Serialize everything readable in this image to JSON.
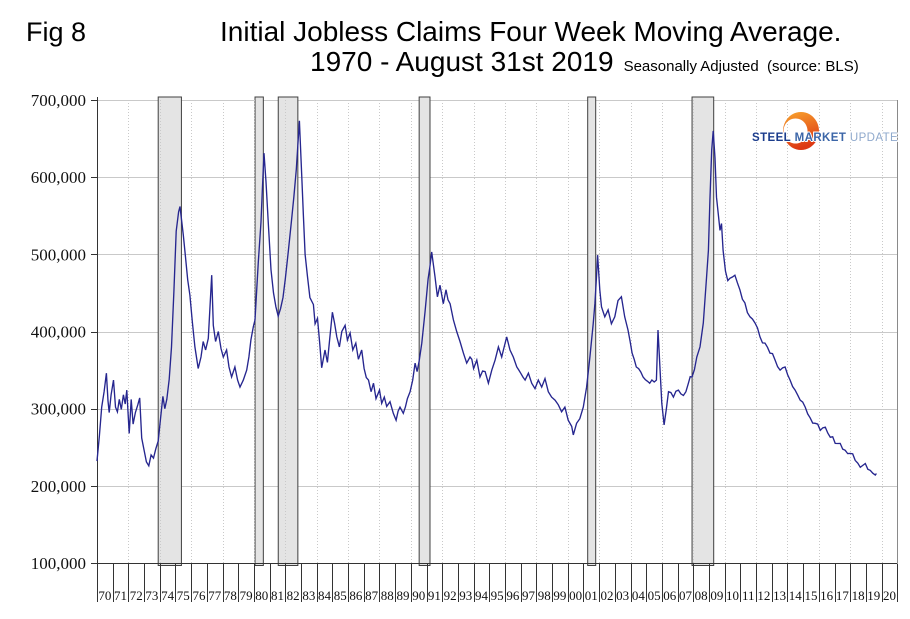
{
  "fig_label": "Fig 8",
  "title": {
    "line1": "Initial Jobless Claims Four Week Moving Average.",
    "line2": "1970 - August 31st 2019",
    "subtitle": "Seasonally Adjusted  (source: BLS)"
  },
  "logo": {
    "steel": "STEEL",
    "market": "MARKET",
    "update": "UPDATE",
    "colors": {
      "steel": "#1b3c8c",
      "market": "#3c66a8",
      "update": "#8fa9cc",
      "crescent_top": "#f9a52e",
      "crescent_bottom": "#dd3814"
    }
  },
  "chart_data": {
    "type": "line",
    "title": "Initial Jobless Claims Four Week Moving Average. 1970 - August 31st 2019",
    "subtitle": "Seasonally Adjusted (source: BLS)",
    "units": "claims (values stored in thousands)",
    "x_axis": {
      "min": 1970,
      "max": 2021,
      "label_years_start": 1970,
      "tick_labels": [
        "70",
        "71",
        "72",
        "73",
        "74",
        "75",
        "76",
        "77",
        "78",
        "79",
        "80",
        "81",
        "82",
        "83",
        "84",
        "85",
        "86",
        "87",
        "88",
        "89",
        "90",
        "91",
        "92",
        "93",
        "94",
        "95",
        "96",
        "97",
        "98",
        "99",
        "00",
        "01",
        "02",
        "03",
        "04",
        "05",
        "06",
        "07",
        "08",
        "09",
        "10",
        "11",
        "12",
        "13",
        "14",
        "15",
        "16",
        "17",
        "18",
        "19",
        "20"
      ]
    },
    "y_axis": {
      "min": 100000,
      "max": 700000,
      "step": 100000,
      "tick_labels": [
        "100,000",
        "200,000",
        "300,000",
        "400,000",
        "500,000",
        "600,000",
        "700,000"
      ]
    },
    "grid": {
      "horizontal": "solid",
      "vertical": "dotted every 2 years",
      "v_years_start": 1972,
      "v_years_end": 2020
    },
    "recession_bands": [
      {
        "start": 1973.9,
        "end": 1975.38
      },
      {
        "start": 1980.07,
        "end": 1980.6
      },
      {
        "start": 1981.55,
        "end": 1982.8
      },
      {
        "start": 1990.53,
        "end": 1991.22
      },
      {
        "start": 2001.27,
        "end": 2001.78
      },
      {
        "start": 2007.92,
        "end": 2009.3
      }
    ],
    "band_style": {
      "fill": "#e4e4e4",
      "border": "#3f3f3f"
    },
    "series": [
      {
        "name": "Initial jobless claims, four-week moving average (seasonally adjusted)",
        "color": "#26268f",
        "points": [
          [
            1970.0,
            232
          ],
          [
            1970.15,
            265
          ],
          [
            1970.3,
            302
          ],
          [
            1970.45,
            322
          ],
          [
            1970.6,
            346
          ],
          [
            1970.7,
            310
          ],
          [
            1970.78,
            295
          ],
          [
            1970.9,
            318
          ],
          [
            1971.05,
            337
          ],
          [
            1971.18,
            302
          ],
          [
            1971.3,
            296
          ],
          [
            1971.42,
            312
          ],
          [
            1971.55,
            299
          ],
          [
            1971.68,
            318
          ],
          [
            1971.8,
            306
          ],
          [
            1971.9,
            324
          ],
          [
            1972.05,
            268
          ],
          [
            1972.18,
            312
          ],
          [
            1972.3,
            280
          ],
          [
            1972.45,
            295
          ],
          [
            1972.6,
            305
          ],
          [
            1972.72,
            314
          ],
          [
            1972.85,
            262
          ],
          [
            1973.0,
            246
          ],
          [
            1973.15,
            231
          ],
          [
            1973.3,
            226
          ],
          [
            1973.45,
            240
          ],
          [
            1973.6,
            236
          ],
          [
            1973.75,
            248
          ],
          [
            1973.9,
            258
          ],
          [
            1974.05,
            288
          ],
          [
            1974.2,
            316
          ],
          [
            1974.32,
            300
          ],
          [
            1974.45,
            312
          ],
          [
            1974.6,
            338
          ],
          [
            1974.75,
            380
          ],
          [
            1974.9,
            452
          ],
          [
            1975.05,
            530
          ],
          [
            1975.2,
            555
          ],
          [
            1975.29,
            562
          ],
          [
            1975.5,
            525
          ],
          [
            1975.61,
            503
          ],
          [
            1975.78,
            467
          ],
          [
            1975.92,
            447
          ],
          [
            1976.07,
            413
          ],
          [
            1976.24,
            380
          ],
          [
            1976.45,
            352
          ],
          [
            1976.63,
            367
          ],
          [
            1976.77,
            387
          ],
          [
            1976.92,
            376
          ],
          [
            1977.09,
            391
          ],
          [
            1977.31,
            473
          ],
          [
            1977.41,
            408
          ],
          [
            1977.56,
            387
          ],
          [
            1977.73,
            400
          ],
          [
            1977.9,
            378
          ],
          [
            1978.05,
            367
          ],
          [
            1978.26,
            376
          ],
          [
            1978.41,
            354
          ],
          [
            1978.58,
            341
          ],
          [
            1978.79,
            354
          ],
          [
            1978.96,
            337
          ],
          [
            1979.11,
            328
          ],
          [
            1979.32,
            337
          ],
          [
            1979.54,
            350
          ],
          [
            1979.68,
            367
          ],
          [
            1979.81,
            389
          ],
          [
            1979.96,
            406
          ],
          [
            1980.07,
            415
          ],
          [
            1980.28,
            490
          ],
          [
            1980.45,
            542
          ],
          [
            1980.54,
            585
          ],
          [
            1980.64,
            631
          ],
          [
            1980.77,
            594
          ],
          [
            1980.92,
            538
          ],
          [
            1981.09,
            480
          ],
          [
            1981.25,
            450
          ],
          [
            1981.4,
            432
          ],
          [
            1981.55,
            420
          ],
          [
            1981.7,
            430
          ],
          [
            1981.85,
            444
          ],
          [
            1982.0,
            468
          ],
          [
            1982.2,
            505
          ],
          [
            1982.4,
            545
          ],
          [
            1982.55,
            575
          ],
          [
            1982.7,
            610
          ],
          [
            1982.9,
            673
          ],
          [
            1983.05,
            600
          ],
          [
            1983.15,
            550
          ],
          [
            1983.26,
            500
          ],
          [
            1983.57,
            444
          ],
          [
            1983.79,
            435
          ],
          [
            1983.9,
            410
          ],
          [
            1984.05,
            417
          ],
          [
            1984.32,
            353
          ],
          [
            1984.53,
            376
          ],
          [
            1984.68,
            360
          ],
          [
            1985.0,
            425
          ],
          [
            1985.28,
            393
          ],
          [
            1985.45,
            380
          ],
          [
            1985.6,
            400
          ],
          [
            1985.81,
            408
          ],
          [
            1985.96,
            389
          ],
          [
            1986.13,
            398
          ],
          [
            1986.3,
            376
          ],
          [
            1986.49,
            385
          ],
          [
            1986.66,
            364
          ],
          [
            1986.87,
            376
          ],
          [
            1987.02,
            352
          ],
          [
            1987.3,
            337
          ],
          [
            1987.47,
            322
          ],
          [
            1987.62,
            333
          ],
          [
            1987.78,
            313
          ],
          [
            1988.0,
            324
          ],
          [
            1988.14,
            307
          ],
          [
            1988.31,
            315
          ],
          [
            1988.46,
            303
          ],
          [
            1988.67,
            309
          ],
          [
            1988.88,
            294
          ],
          [
            1989.06,
            285
          ],
          [
            1989.31,
            302
          ],
          [
            1989.52,
            294
          ],
          [
            1989.78,
            313
          ],
          [
            1989.95,
            322
          ],
          [
            1990.12,
            337
          ],
          [
            1990.27,
            359
          ],
          [
            1990.4,
            348
          ],
          [
            1990.53,
            362
          ],
          [
            1990.7,
            385
          ],
          [
            1990.9,
            425
          ],
          [
            1991.1,
            468
          ],
          [
            1991.33,
            503
          ],
          [
            1991.54,
            471
          ],
          [
            1991.69,
            445
          ],
          [
            1991.86,
            460
          ],
          [
            1992.07,
            436
          ],
          [
            1992.24,
            454
          ],
          [
            1992.5,
            436
          ],
          [
            1992.71,
            415
          ],
          [
            1992.92,
            400
          ],
          [
            1993.13,
            387
          ],
          [
            1993.35,
            372
          ],
          [
            1993.56,
            359
          ],
          [
            1993.77,
            367
          ],
          [
            1994.0,
            352
          ],
          [
            1994.2,
            363
          ],
          [
            1994.41,
            341
          ],
          [
            1994.73,
            348
          ],
          [
            1994.94,
            333
          ],
          [
            1995.16,
            350
          ],
          [
            1995.37,
            363
          ],
          [
            1995.58,
            380
          ],
          [
            1995.79,
            367
          ],
          [
            1995.9,
            376
          ],
          [
            1996.11,
            393
          ],
          [
            1996.32,
            376
          ],
          [
            1996.53,
            367
          ],
          [
            1996.75,
            354
          ],
          [
            1997.0,
            346
          ],
          [
            1997.28,
            337
          ],
          [
            1997.49,
            346
          ],
          [
            1997.7,
            333
          ],
          [
            1997.91,
            326
          ],
          [
            1998.12,
            337
          ],
          [
            1998.34,
            328
          ],
          [
            1998.55,
            339
          ],
          [
            1998.76,
            322
          ],
          [
            1998.97,
            315
          ],
          [
            1999.19,
            311
          ],
          [
            1999.4,
            305
          ],
          [
            1999.61,
            296
          ],
          [
            1999.82,
            302
          ],
          [
            2000.03,
            285
          ],
          [
            2000.25,
            277
          ],
          [
            2000.35,
            266
          ],
          [
            2000.56,
            281
          ],
          [
            2000.77,
            287
          ],
          [
            2000.99,
            302
          ],
          [
            2001.2,
            328
          ],
          [
            2001.41,
            367
          ],
          [
            2001.62,
            410
          ],
          [
            2001.73,
            436
          ],
          [
            2001.83,
            471
          ],
          [
            2001.9,
            499
          ],
          [
            2002.04,
            454
          ],
          [
            2002.15,
            432
          ],
          [
            2002.36,
            419
          ],
          [
            2002.57,
            428
          ],
          [
            2002.78,
            410
          ],
          [
            2003.0,
            419
          ],
          [
            2003.2,
            440
          ],
          [
            2003.42,
            445
          ],
          [
            2003.63,
            419
          ],
          [
            2003.84,
            402
          ],
          [
            2004.1,
            372
          ],
          [
            2004.37,
            354
          ],
          [
            2004.8,
            341
          ],
          [
            2005.22,
            333
          ],
          [
            2005.65,
            337
          ],
          [
            2005.75,
            402
          ],
          [
            2005.99,
            307
          ],
          [
            2006.14,
            279
          ],
          [
            2006.42,
            322
          ],
          [
            2006.73,
            315
          ],
          [
            2007.05,
            324
          ],
          [
            2007.37,
            317
          ],
          [
            2007.69,
            333
          ],
          [
            2007.92,
            341
          ],
          [
            2008.22,
            367
          ],
          [
            2008.43,
            380
          ],
          [
            2008.64,
            411
          ],
          [
            2008.85,
            471
          ],
          [
            2008.96,
            505
          ],
          [
            2009.06,
            570
          ],
          [
            2009.17,
            635
          ],
          [
            2009.27,
            660
          ],
          [
            2009.38,
            625
          ],
          [
            2009.48,
            574
          ],
          [
            2009.7,
            531
          ],
          [
            2009.8,
            540
          ],
          [
            2009.9,
            505
          ],
          [
            2010.05,
            478
          ],
          [
            2010.2,
            466
          ],
          [
            2010.33,
            469
          ],
          [
            2010.65,
            473
          ],
          [
            2010.97,
            454
          ],
          [
            2011.29,
            437
          ],
          [
            2011.61,
            419
          ],
          [
            2011.93,
            411
          ],
          [
            2012.25,
            393
          ],
          [
            2012.57,
            385
          ],
          [
            2012.89,
            372
          ],
          [
            2013.21,
            363
          ],
          [
            2013.53,
            350
          ],
          [
            2013.85,
            354
          ],
          [
            2014.17,
            337
          ],
          [
            2014.49,
            324
          ],
          [
            2014.81,
            311
          ],
          [
            2015.13,
            302
          ],
          [
            2015.45,
            288
          ],
          [
            2015.77,
            281
          ],
          [
            2016.09,
            272
          ],
          [
            2016.41,
            276
          ],
          [
            2016.73,
            263
          ],
          [
            2017.04,
            255
          ],
          [
            2017.36,
            255
          ],
          [
            2017.68,
            246
          ],
          [
            2018.0,
            242
          ],
          [
            2018.32,
            233
          ],
          [
            2018.64,
            224
          ],
          [
            2018.96,
            229
          ],
          [
            2019.28,
            220
          ],
          [
            2019.6,
            214
          ],
          [
            2019.67,
            216
          ]
        ]
      }
    ],
    "legend": "none",
    "colors": {
      "line": "#26268f",
      "grid": "#c9c9c9",
      "axis": "#333333",
      "right_border": "#8a8a8a"
    }
  }
}
